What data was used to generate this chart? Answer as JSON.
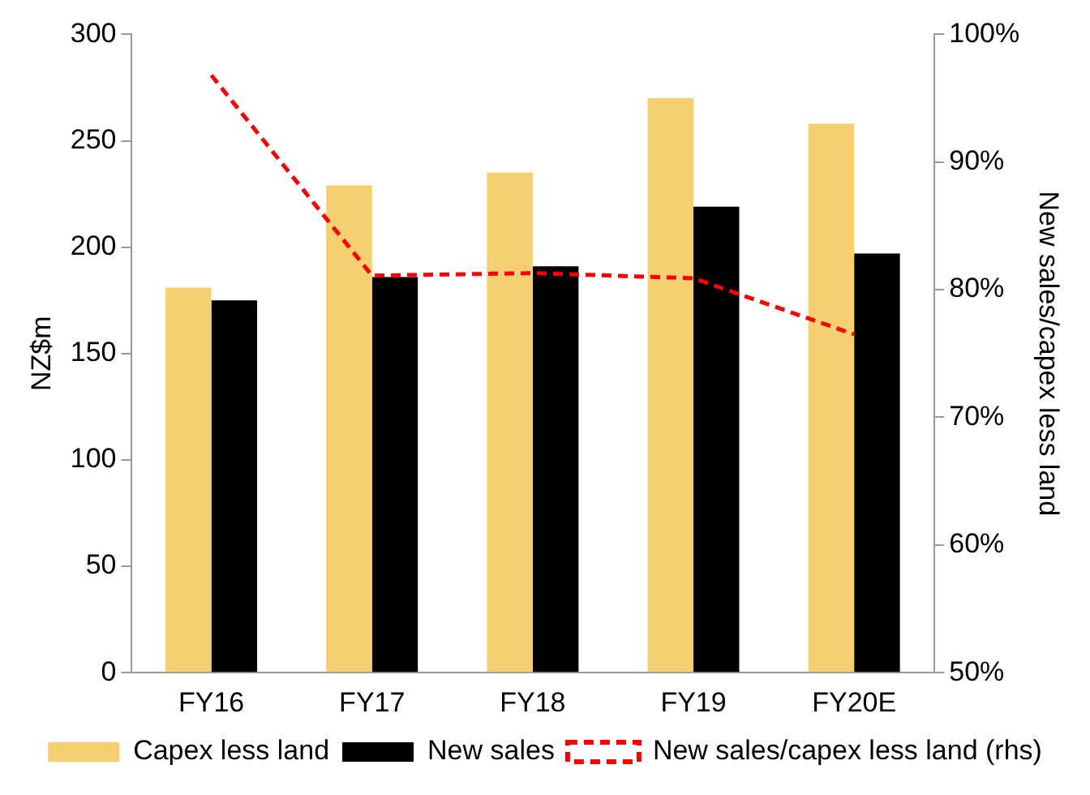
{
  "chart_data": {
    "type": "bar",
    "categories": [
      "FY16",
      "FY17",
      "FY18",
      "FY19",
      "FY20E"
    ],
    "series": [
      {
        "name": "Capex less land",
        "color": "#f6d070",
        "values": [
          181,
          229,
          235,
          270,
          258
        ]
      },
      {
        "name": "New sales",
        "color": "#000000",
        "values": [
          175,
          186,
          191,
          219,
          197
        ]
      },
      {
        "name": "New sales/capex less land (rhs)",
        "type": "line",
        "axis": "y2",
        "color": "#ff0000",
        "line_style": "dashed",
        "marker": "none",
        "values": [
          96.8,
          81.1,
          81.3,
          80.9,
          76.5
        ]
      }
    ],
    "ylabel": "NZ$m",
    "y2label": "New sales/capex less land",
    "ylim": [
      0,
      300
    ],
    "yticks": [
      0,
      50,
      100,
      150,
      200,
      250,
      300
    ],
    "y2lim": [
      50,
      100
    ],
    "y2ticks": [
      {
        "value": 50,
        "label": "50%"
      },
      {
        "value": 60,
        "label": "60%"
      },
      {
        "value": 70,
        "label": "70%"
      },
      {
        "value": 80,
        "label": "80%"
      },
      {
        "value": 90,
        "label": "90%"
      },
      {
        "value": 100,
        "label": "100%"
      }
    ],
    "grid": false,
    "legend": "bottom"
  }
}
